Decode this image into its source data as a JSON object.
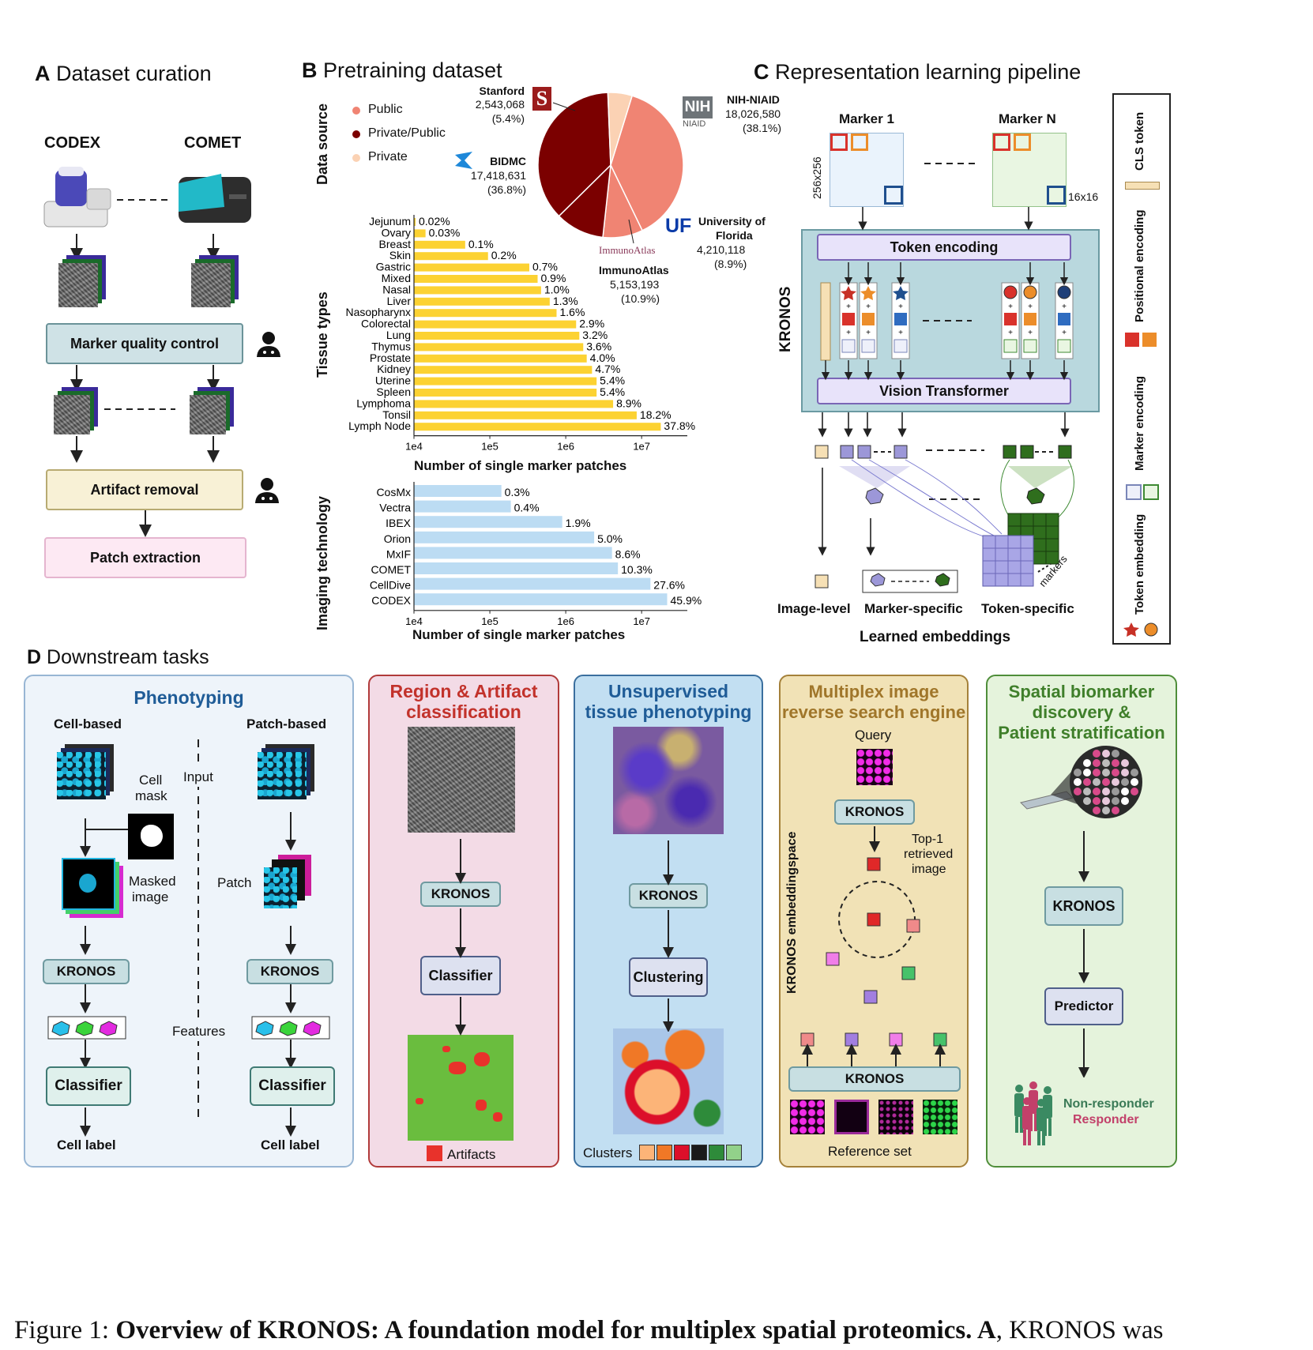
{
  "panelA": {
    "title_letter": "A",
    "title": "Dataset curation",
    "left_label": "CODEX",
    "right_label": "COMET",
    "step1": "Marker quality control",
    "step2": "Artifact removal",
    "step3": "Patch extraction",
    "icon_person": "person-icon"
  },
  "panelB": {
    "title_letter": "B",
    "title": "Pretraining dataset",
    "data_source_label": "Data source",
    "tissue_label": "Tissue types",
    "imaging_label": "Imaging technology",
    "legend": [
      "Public",
      "Private/Public",
      "Private"
    ],
    "legend_colors": [
      "#f08473",
      "#7b0000",
      "#fbd2b4"
    ],
    "pie_labels": [
      {
        "name": "NIH-NIAID",
        "count": "18,026,580",
        "pct": "(38.1%)"
      },
      {
        "name": "University of",
        "name2": "Florida",
        "count": "4,210,118",
        "pct": "(8.9%)"
      },
      {
        "name": "ImmunoAtlas",
        "count": "5,153,193",
        "pct": "(10.9%)"
      },
      {
        "name": "BIDMC",
        "count": "17,418,631",
        "pct": "(36.8%)"
      },
      {
        "name": "Stanford",
        "count": "2,543,068",
        "pct": "(5.4%)"
      }
    ],
    "logos": {
      "nih": "NIH",
      "niaid": "NIAID",
      "uf": "UF",
      "stanford": "S",
      "immuno": "ImmunoAtlas"
    },
    "tissue_xlabel": "Number of single marker patches",
    "imaging_xlabel": "Number of single marker patches",
    "ticks": [
      "1e4",
      "1e5",
      "1e6",
      "1e7"
    ]
  },
  "chart_data": [
    {
      "type": "bar",
      "orientation": "horizontal",
      "xscale": "log",
      "xlabel": "Number of single marker patches",
      "ylabel": "Tissue types",
      "categories": [
        "Jejunum",
        "Ovary",
        "Breast",
        "Skin",
        "Gastric",
        "Mixed",
        "Nasal",
        "Liver",
        "Nasopharynx",
        "Colorectal",
        "Lung",
        "Thymus",
        "Prostate",
        "Kidney",
        "Uterine",
        "Spleen",
        "Lymphoma",
        "Tonsil",
        "Lymph Node"
      ],
      "labels": [
        "0.02%",
        "0.03%",
        "0.1%",
        "0.2%",
        "0.7%",
        "0.9%",
        "1.0%",
        "1.3%",
        "1.6%",
        "2.9%",
        "3.2%",
        "3.6%",
        "4.0%",
        "4.7%",
        "5.4%",
        "5.4%",
        "8.9%",
        "18.2%",
        "37.8%"
      ],
      "values": [
        9500,
        14200,
        47300,
        94600,
        331000,
        426000,
        473000,
        615000,
        757000,
        1370000,
        1510000,
        1700000,
        1890000,
        2220000,
        2550000,
        2550000,
        4210000,
        8610000,
        17880000
      ],
      "xlim": [
        10000,
        40000000
      ],
      "color": "#fcd232"
    },
    {
      "type": "bar",
      "orientation": "horizontal",
      "xscale": "log",
      "xlabel": "Number of single marker patches",
      "ylabel": "Imaging technology",
      "categories": [
        "CosMx",
        "Vectra",
        "IBEX",
        "Orion",
        "MxIF",
        "COMET",
        "CellDive",
        "CODEX"
      ],
      "labels": [
        "0.3%",
        "0.4%",
        "1.9%",
        "5.0%",
        "8.6%",
        "10.3%",
        "27.6%",
        "45.9%"
      ],
      "values": [
        142000,
        189000,
        899000,
        2370000,
        4070000,
        4870000,
        13060000,
        21710000
      ],
      "xlim": [
        10000,
        40000000
      ],
      "color": "#bcdcf3"
    },
    {
      "type": "pie",
      "ylabel": "Data source",
      "categories": [
        "NIH-NIAID",
        "University of Florida",
        "ImmunoAtlas",
        "BIDMC",
        "Stanford"
      ],
      "values": [
        38.1,
        8.9,
        10.9,
        36.8,
        5.4
      ],
      "colors": [
        "#f08473",
        "#f08473",
        "#7b0000",
        "#7b0000",
        "#fbd2b4"
      ],
      "legend": [
        "Public",
        "Private/Public",
        "Private"
      ]
    }
  ],
  "panelC": {
    "title_letter": "C",
    "title": "Representation learning pipeline",
    "marker1": "Marker 1",
    "markerN": "Marker N",
    "size_big": "256x256",
    "size_small": "16x16",
    "kronos": "KRONOS",
    "token_encoding": "Token encoding",
    "vit": "Vision Transformer",
    "markers": "markers",
    "image_level": "Image-level",
    "marker_specific": "Marker-specific",
    "token_specific": "Token-specific",
    "learned": "Learned embeddings",
    "legend": [
      "CLS token",
      "Positional encoding",
      "Marker encoding",
      "Token embedding"
    ]
  },
  "panelD": {
    "title_letter": "D",
    "title": "Downstream tasks",
    "pheno": {
      "title": "Phenotyping",
      "cell_based": "Cell-based",
      "patch_based": "Patch-based",
      "cell_mask_1": "Cell",
      "cell_mask_2": "mask",
      "input": "Input",
      "masked_1": "Masked",
      "masked_2": "image",
      "patch": "Patch",
      "kronos": "KRONOS",
      "features": "Features",
      "classifier": "Classifier",
      "cell_label": "Cell label"
    },
    "region": {
      "title1": "Region & Artifact",
      "title2": "classification",
      "kronos": "KRONOS",
      "classifier": "Classifier",
      "artifacts": "Artifacts"
    },
    "unsup": {
      "title1": "Unsupervised",
      "title2": "tissue phenotyping",
      "kronos": "KRONOS",
      "clustering": "Clustering",
      "clusters": "Clusters",
      "cluster_colors": [
        "#fcb478",
        "#f07826",
        "#dc0f2a",
        "#1a1a1a",
        "#2e8b3a",
        "#92d18a"
      ]
    },
    "search": {
      "title1": "Multiplex image",
      "title2": "reverse search engine",
      "query": "Query",
      "kronos": "KRONOS",
      "top1_a": "Top-1",
      "top1_b": "retrieved",
      "top1_c": "image",
      "space": "KRONOS embeddingspace",
      "reference": "Reference set"
    },
    "spatial": {
      "title1": "Spatial biomarker",
      "title2": "discovery &",
      "title3": "Patient stratification",
      "kronos": "KRONOS",
      "predictor": "Predictor",
      "non_responder": "Non-responder",
      "responder": "Responder"
    }
  },
  "caption": {
    "prefix": "Figure 1: ",
    "bold": "Overview of KRONOS: A foundation model for multiplex spatial proteomics. A",
    "rest": ", KRONOS was"
  }
}
